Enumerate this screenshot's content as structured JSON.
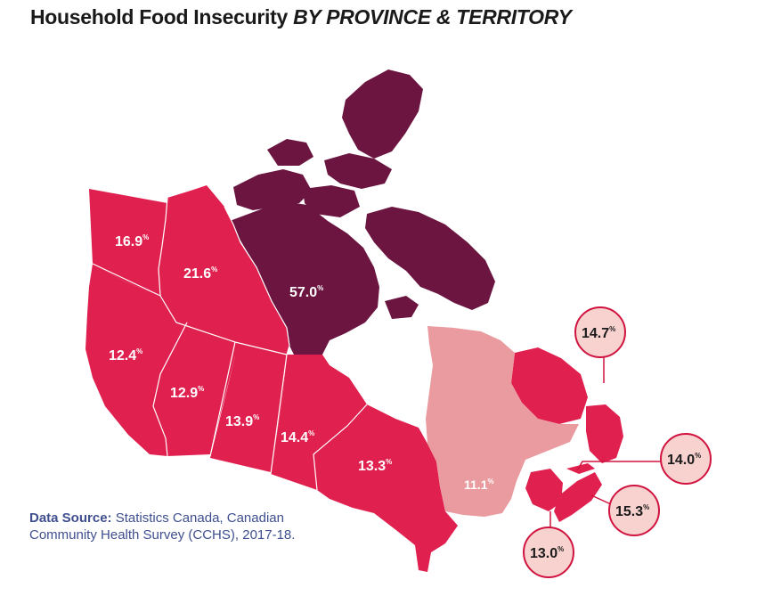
{
  "title": {
    "main": "Household Food Insecurity ",
    "emphasis": "BY PROVINCE & TERRITORY"
  },
  "colors": {
    "province_red": "#e0204f",
    "nunavut": "#6b1540",
    "quebec": "#e99b9f",
    "callout_fill": "#f7d2cf",
    "callout_border": "#d0143f",
    "source_text": "#3f4f8f",
    "water": "#ffffff"
  },
  "regions": {
    "yukon": {
      "value": "16.9",
      "unit": "%"
    },
    "northwest_territories": {
      "value": "21.6",
      "unit": "%"
    },
    "nunavut": {
      "value": "57.0",
      "unit": "%"
    },
    "british_columbia": {
      "value": "12.4",
      "unit": "%"
    },
    "alberta": {
      "value": "12.9",
      "unit": "%"
    },
    "saskatchewan": {
      "value": "13.9",
      "unit": "%"
    },
    "manitoba": {
      "value": "14.4",
      "unit": "%"
    },
    "ontario": {
      "value": "13.3",
      "unit": "%"
    },
    "quebec": {
      "value": "11.1",
      "unit": "%"
    },
    "newfoundland_labrador": {
      "value": "14.7",
      "unit": "%"
    },
    "prince_edward_island": {
      "value": "14.0",
      "unit": "%"
    },
    "nova_scotia": {
      "value": "15.3",
      "unit": "%"
    },
    "new_brunswick": {
      "value": "13.0",
      "unit": "%"
    }
  },
  "source": {
    "label": "Data Source:",
    "text": " Statistics Canada, Canadian Community Health Survey (CCHS), 2017-18."
  }
}
